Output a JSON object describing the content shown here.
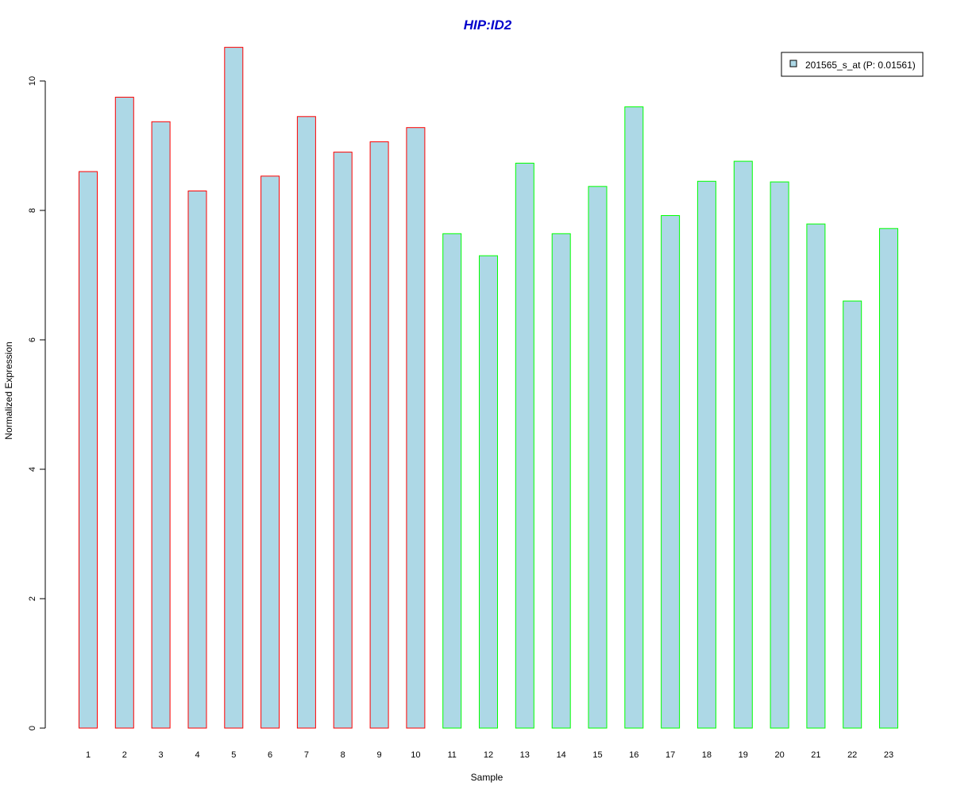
{
  "chart_data": {
    "type": "bar",
    "title": "HIP:ID2",
    "xlabel": "Sample",
    "ylabel": "Normalized Expression",
    "ylim": [
      0,
      10.5
    ],
    "yticks": [
      0,
      2,
      4,
      6,
      8,
      10
    ],
    "categories": [
      "1",
      "2",
      "3",
      "4",
      "5",
      "6",
      "7",
      "8",
      "9",
      "10",
      "11",
      "12",
      "13",
      "14",
      "15",
      "16",
      "17",
      "18",
      "19",
      "20",
      "21",
      "22",
      "23"
    ],
    "series": [
      {
        "name": "201565_s_at (P: 0.01561)",
        "values": [
          8.6,
          9.75,
          9.37,
          8.3,
          10.52,
          8.53,
          9.45,
          8.9,
          9.06,
          9.28,
          7.64,
          7.3,
          8.73,
          7.64,
          8.37,
          9.6,
          7.92,
          8.45,
          8.76,
          8.44,
          7.79,
          6.6,
          7.72
        ]
      }
    ],
    "bar_fill": "#add8e6",
    "bar_border_colors": [
      "#ff0000",
      "#ff0000",
      "#ff0000",
      "#ff0000",
      "#ff0000",
      "#ff0000",
      "#ff0000",
      "#ff0000",
      "#ff0000",
      "#ff0000",
      "#00ff00",
      "#00ff00",
      "#00ff00",
      "#00ff00",
      "#00ff00",
      "#00ff00",
      "#00ff00",
      "#00ff00",
      "#00ff00",
      "#00ff00",
      "#00ff00",
      "#00ff00",
      "#00ff00"
    ],
    "title_color": "#0000cc",
    "grid": false,
    "legend_position": "top-right"
  }
}
